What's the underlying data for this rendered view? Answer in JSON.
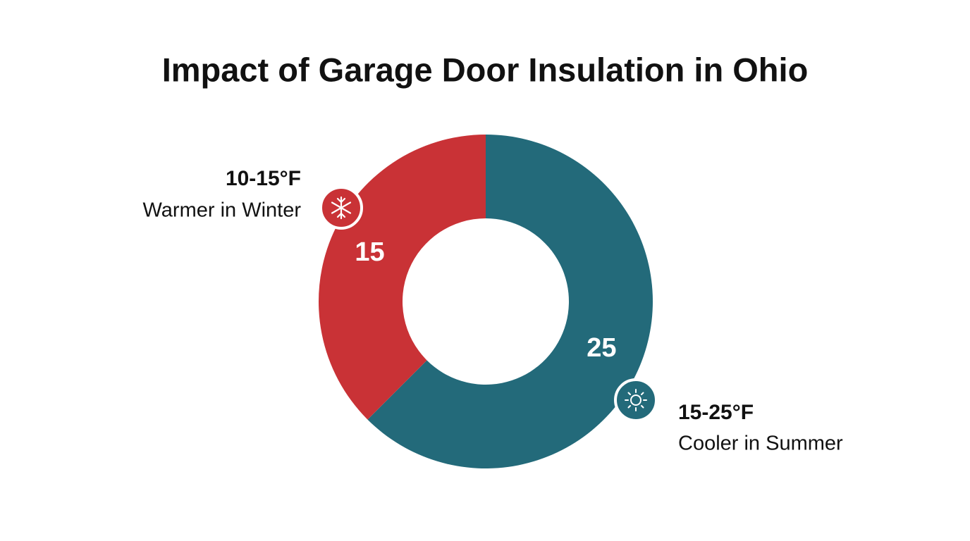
{
  "chart_data": {
    "type": "donut",
    "title": "Impact of Garage Door Insulation in Ohio",
    "categories": [
      "Cooler in Summer",
      "Warmer in Winter"
    ],
    "range_labels": [
      "15-25°F",
      "10-15°F"
    ],
    "values": [
      25,
      15
    ],
    "colors": [
      "#236a7a",
      "#c93236"
    ]
  }
}
